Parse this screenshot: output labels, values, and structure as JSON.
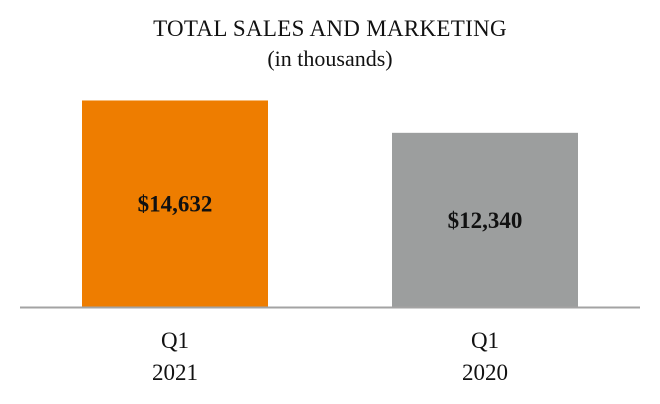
{
  "chart_data": {
    "type": "bar",
    "title": "TOTAL SALES AND MARKETING",
    "subtitle": "(in thousands)",
    "categories": [
      {
        "line1": "Q1",
        "line2": "2021"
      },
      {
        "line1": "Q1",
        "line2": "2020"
      }
    ],
    "values": [
      14632,
      12340
    ],
    "value_labels": [
      "$14,632",
      "$12,340"
    ],
    "colors": [
      "#ee7d00",
      "#9c9e9e"
    ],
    "axis_color": "#a3a3a3",
    "ylim": [
      0,
      17500
    ],
    "grid": false,
    "legend": "none"
  }
}
